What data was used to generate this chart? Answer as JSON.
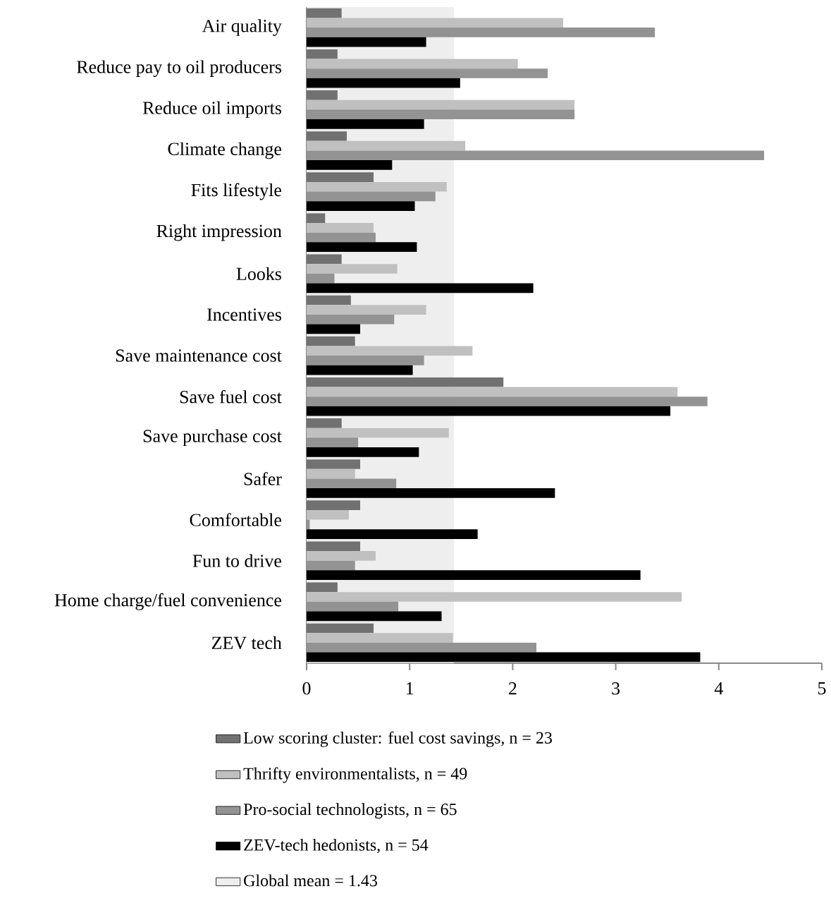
{
  "chart_data": {
    "type": "bar",
    "orientation": "horizontal",
    "categories": [
      "Air quality",
      "Reduce pay to oil producers",
      "Reduce oil imports",
      "Climate change",
      "Fits lifestyle",
      "Right impression",
      "Looks",
      "Incentives",
      "Save maintenance cost",
      "Save fuel cost",
      "Save purchase cost",
      "Safer",
      "Comfortable",
      "Fun to drive",
      "Home charge/fuel convenience",
      "ZEV tech"
    ],
    "series": [
      {
        "name": "Low scoring cluster: fuel cost savings, n = 23",
        "color": "#717171",
        "values": [
          0.34,
          0.3,
          0.3,
          0.39,
          0.65,
          0.18,
          0.34,
          0.43,
          0.47,
          1.91,
          0.34,
          0.52,
          0.52,
          0.52,
          0.3,
          0.65
        ]
      },
      {
        "name": "Thrifty environmentalists, n = 49",
        "color": "#c0c0c0",
        "values": [
          2.49,
          2.05,
          2.6,
          1.54,
          1.36,
          0.65,
          0.88,
          1.16,
          1.61,
          3.6,
          1.38,
          0.47,
          0.41,
          0.67,
          3.64,
          1.42
        ]
      },
      {
        "name": "Pro-social technologists, n = 65",
        "color": "#939393",
        "values": [
          3.38,
          2.34,
          2.6,
          4.44,
          1.25,
          0.67,
          0.27,
          0.85,
          1.14,
          3.89,
          0.5,
          0.87,
          0.03,
          0.47,
          0.89,
          2.23
        ]
      },
      {
        "name": "ZEV-tech hedonists, n = 54",
        "color": "#000000",
        "values": [
          1.16,
          1.49,
          1.14,
          0.83,
          1.05,
          1.07,
          2.2,
          0.52,
          1.03,
          3.53,
          1.09,
          2.41,
          1.66,
          3.24,
          1.31,
          3.82
        ]
      }
    ],
    "xlim": [
      0,
      5
    ],
    "xticks": [
      0,
      1,
      2,
      3,
      4,
      5
    ],
    "bands": [
      {
        "axis": "x",
        "from": 0,
        "to": 1.43,
        "label": "Global mean = 1.43",
        "color": "#eeeeee"
      }
    ],
    "legend": "bottom"
  }
}
